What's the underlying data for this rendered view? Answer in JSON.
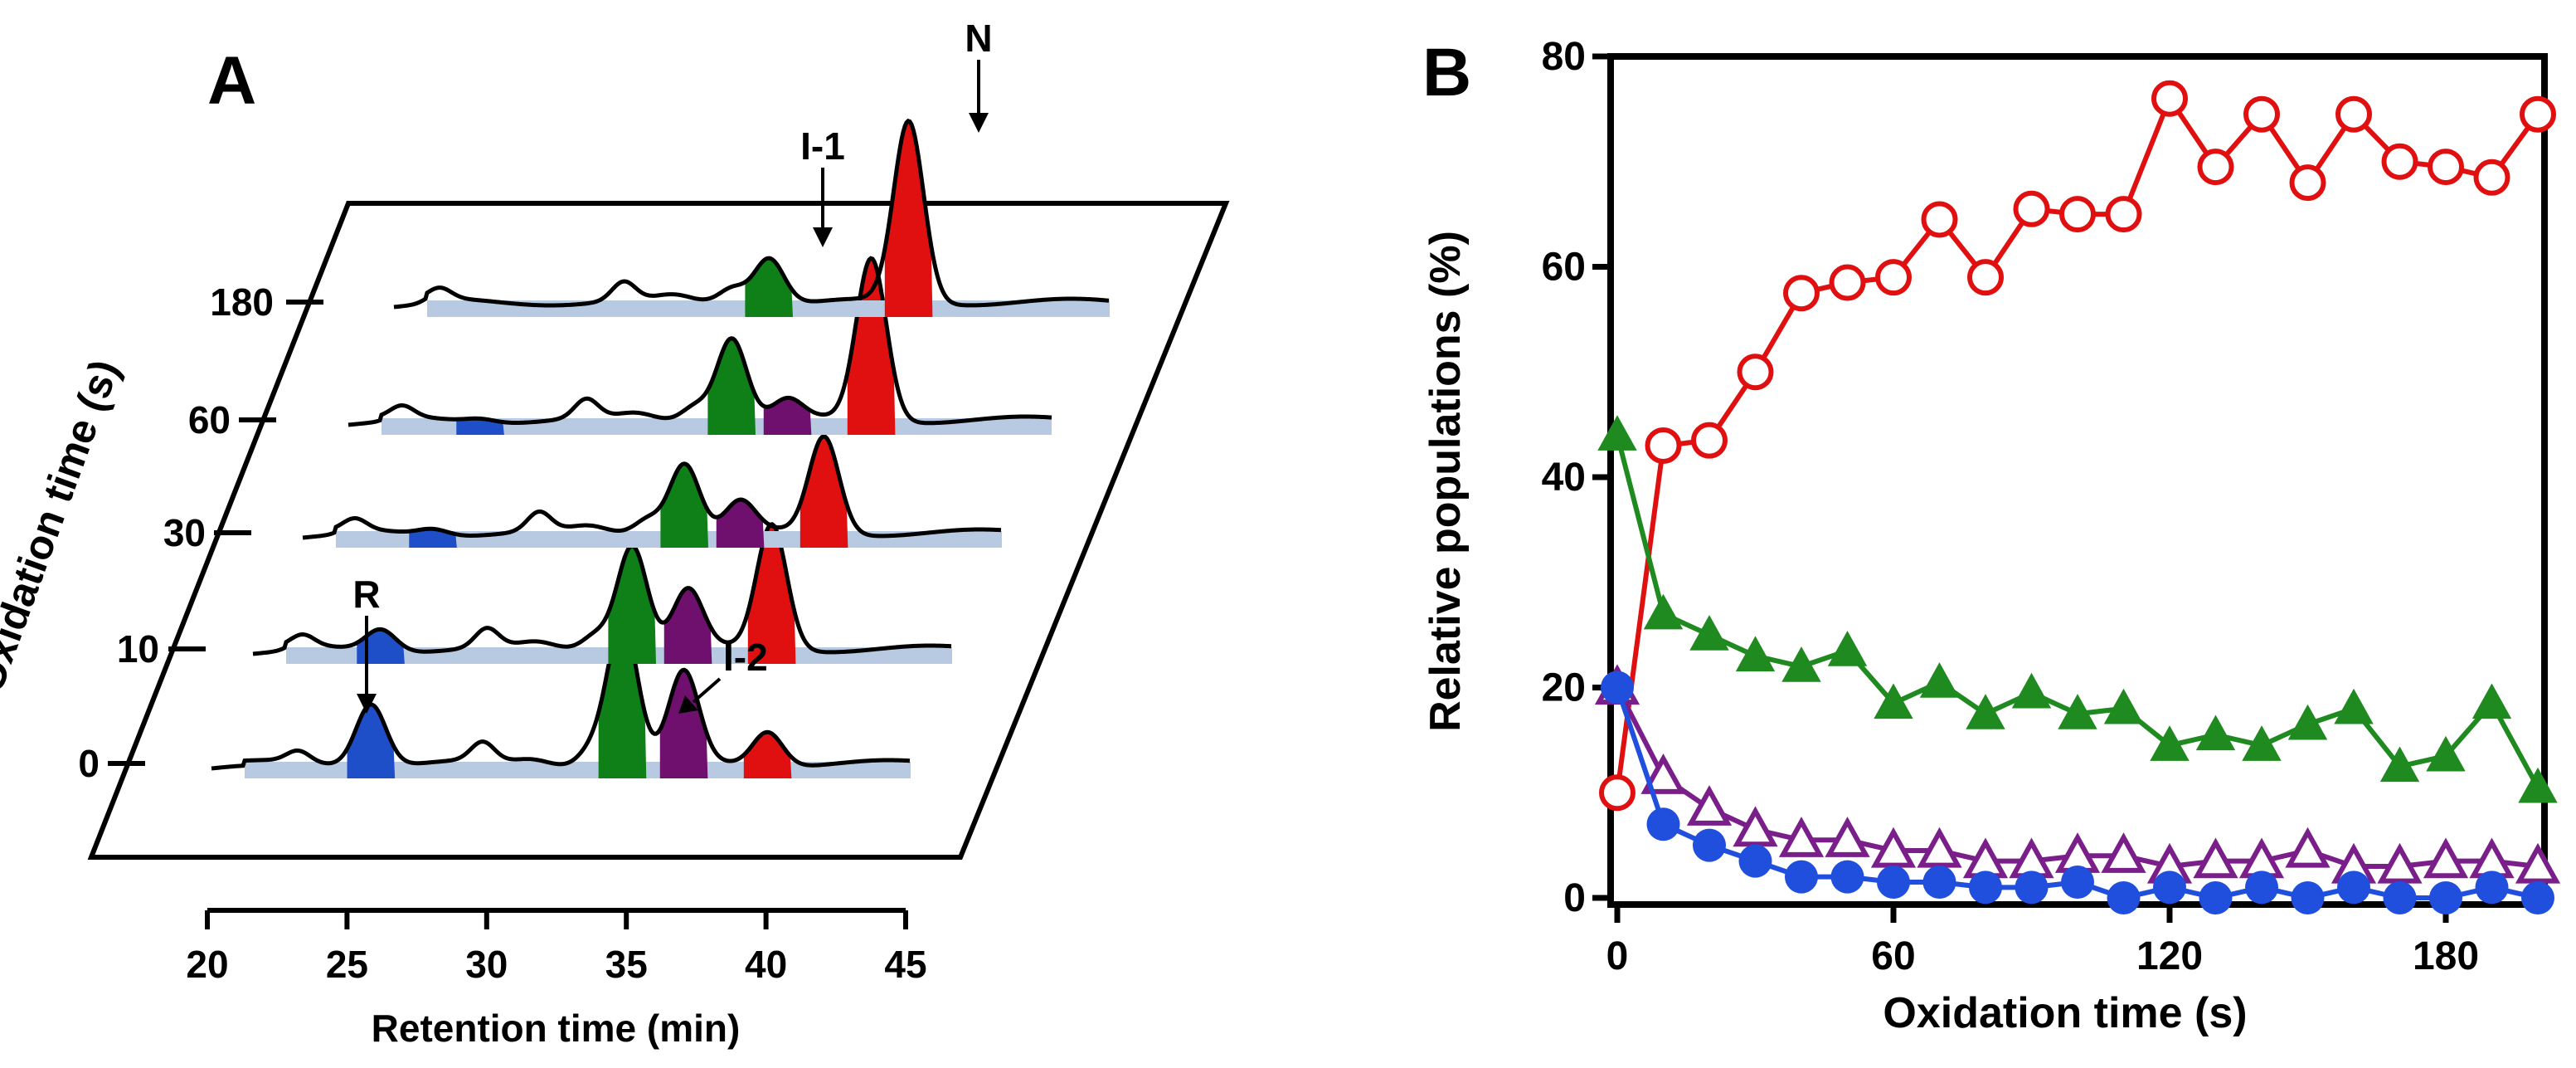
{
  "colors": {
    "R": "#1f4fc8",
    "I1": "#0f7f17",
    "I2": "#70106e",
    "N": "#e01010",
    "baseline_fill": "#b8c9e2",
    "line": "#000000",
    "ox_series_N": "#e01010",
    "ox_series_I1": "#1f8a1f",
    "ox_series_I2": "#7a1f8a",
    "ox_series_R": "#1f4fdc"
  },
  "panelA": {
    "letter": "A",
    "xlabel": "Retention time (min)",
    "ylabel": "Oxidation time (s)",
    "xticks": [
      "20",
      "25",
      "30",
      "35",
      "40",
      "45"
    ],
    "yticks": [
      "0",
      "10",
      "30",
      "60",
      "180"
    ],
    "labels": {
      "R": "R",
      "I1": "I-1",
      "I2": "I-2",
      "N": "N"
    }
  },
  "chart_data": [
    {
      "type": "area",
      "title": "A",
      "xlabel": "Retention time (min)",
      "ylabel": "Oxidation time (s)",
      "xlim": [
        20,
        45
      ],
      "traces": [
        {
          "oxidation_time": 0,
          "peaks": [
            {
              "species": "R",
              "rt": 25.8,
              "height": 1.0
            },
            {
              "species": "I-1",
              "rt": 34.8,
              "height": 2.3
            },
            {
              "species": "I-2",
              "rt": 37.0,
              "height": 1.45
            },
            {
              "species": "N",
              "rt": 40.0,
              "height": 0.55
            }
          ]
        },
        {
          "oxidation_time": 10,
          "peaks": [
            {
              "species": "R",
              "rt": 26.0,
              "height": 0.35
            },
            {
              "species": "I-1",
              "rt": 35.0,
              "height": 1.7
            },
            {
              "species": "I-2",
              "rt": 37.0,
              "height": 0.95
            },
            {
              "species": "N",
              "rt": 40.0,
              "height": 2.0
            }
          ]
        },
        {
          "oxidation_time": 30,
          "peaks": [
            {
              "species": "R",
              "rt": 26.0,
              "height": 0.1
            },
            {
              "species": "I-1",
              "rt": 35.0,
              "height": 1.15
            },
            {
              "species": "I-2",
              "rt": 37.0,
              "height": 0.5
            },
            {
              "species": "N",
              "rt": 40.0,
              "height": 1.55
            }
          ]
        },
        {
          "oxidation_time": 60,
          "peaks": [
            {
              "species": "R",
              "rt": 26.0,
              "height": 0.06
            },
            {
              "species": "I-1",
              "rt": 35.0,
              "height": 1.35
            },
            {
              "species": "I-2",
              "rt": 37.0,
              "height": 0.32
            },
            {
              "species": "N",
              "rt": 40.0,
              "height": 2.6
            }
          ]
        },
        {
          "oxidation_time": 180,
          "peaks": [
            {
              "species": "I-1",
              "rt": 35.0,
              "height": 0.75
            },
            {
              "species": "N",
              "rt": 40.0,
              "height": 2.9
            }
          ]
        }
      ]
    },
    {
      "type": "line",
      "title": "B",
      "xlabel": "Oxidation time (s)",
      "ylabel": "Relative populations (%)",
      "xlim": [
        0,
        200
      ],
      "ylim": [
        0,
        80
      ],
      "xticks": [
        0,
        60,
        120,
        180
      ],
      "yticks": [
        0,
        20,
        40,
        60,
        80
      ],
      "x": [
        0,
        10,
        20,
        30,
        40,
        50,
        60,
        70,
        80,
        90,
        100,
        110,
        120,
        130,
        140,
        150,
        160,
        170,
        180,
        190,
        200
      ],
      "series": [
        {
          "name": "N",
          "marker": "open-circle",
          "values": [
            10,
            43,
            43.5,
            50,
            57.5,
            58.5,
            59,
            64.5,
            59,
            65.5,
            65,
            65,
            76,
            69.5,
            74.5,
            68,
            74.5,
            70,
            69.5,
            68.5,
            74.5
          ]
        },
        {
          "name": "I-1",
          "marker": "filled-triangle",
          "values": [
            44,
            27,
            25,
            23,
            22,
            23.5,
            18.5,
            20.5,
            17.5,
            19.5,
            17.5,
            18,
            14.5,
            15.5,
            14.5,
            16.5,
            18,
            12.5,
            13.5,
            18.5,
            10.5
          ]
        },
        {
          "name": "I-2",
          "marker": "open-triangle",
          "values": [
            20,
            11.5,
            8.5,
            6.5,
            5.5,
            5.5,
            4.5,
            4.5,
            3.5,
            3.5,
            4,
            4,
            3,
            3.5,
            3.5,
            4.5,
            3,
            3,
            3.5,
            3.5,
            3
          ]
        },
        {
          "name": "R",
          "marker": "filled-circle",
          "values": [
            20,
            7,
            5,
            3.5,
            2,
            2,
            1.5,
            1.5,
            1,
            1,
            1.5,
            0,
            1,
            0,
            1,
            0,
            1,
            0,
            0,
            1,
            0
          ]
        }
      ]
    }
  ],
  "panelB": {
    "letter": "B",
    "xlabel": "Oxidation time (s)",
    "ylabel": "Relative populations (%)",
    "xticks": [
      "0",
      "60",
      "120",
      "180"
    ],
    "yticks": [
      "0",
      "20",
      "40",
      "60",
      "80"
    ]
  }
}
